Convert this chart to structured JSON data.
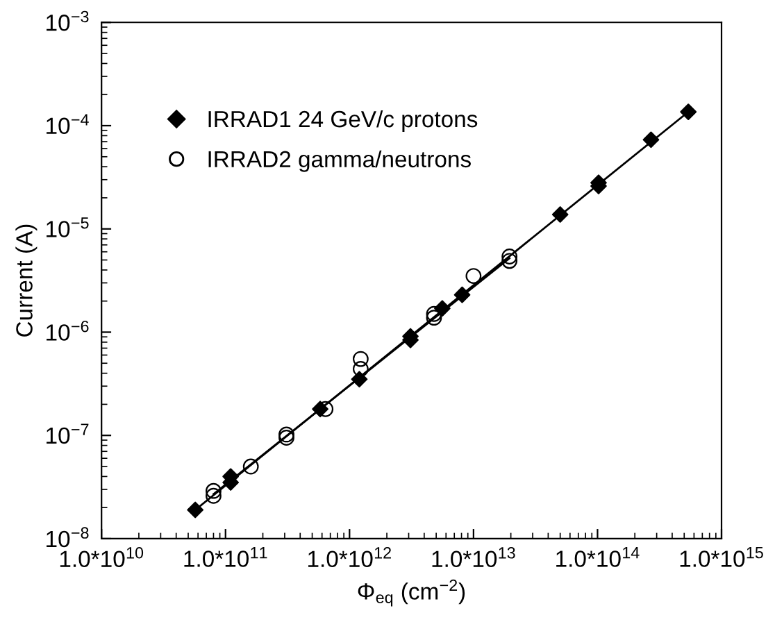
{
  "chart_data": {
    "type": "scatter",
    "xlabel": "Φ$_{eq}$ (cm$^{−2}$)",
    "ylabel": "Current (A)",
    "log": "xy",
    "grid": false,
    "legend": "top left",
    "xlim": [
      10000000000.0,
      1000000000000000.0
    ],
    "ylim": [
      1e-08,
      0.001
    ],
    "xticks": [
      {
        "value": 10000000000.0,
        "label": "1.0*10$^{10}$"
      },
      {
        "value": 100000000000.0,
        "label": "1.0*10$^{11}$"
      },
      {
        "value": 1000000000000.0,
        "label": "1.0*10$^{12}$"
      },
      {
        "value": 10000000000000.0,
        "label": "1.0*10$^{13}$"
      },
      {
        "value": 100000000000000.0,
        "label": "1.0*10$^{14}$"
      },
      {
        "value": 1000000000000000.0,
        "label": "1.0*10$^{15}$"
      }
    ],
    "yticks": [
      {
        "value": 1e-08,
        "label": "10$^{−8}$"
      },
      {
        "value": 1e-07,
        "label": "10$^{−7}$"
      },
      {
        "value": 1e-06,
        "label": "10$^{−6}$"
      },
      {
        "value": 1e-05,
        "label": "10$^{−5}$"
      },
      {
        "value": 0.0001,
        "label": "10$^{−4}$"
      },
      {
        "value": 0.001,
        "label": "10$^{−3}$"
      }
    ],
    "series": [
      {
        "type": "line",
        "color": "#000000",
        "line_style": "solid",
        "marker": "none",
        "x": [
          57000000000.0,
          540000000000000.0
        ],
        "values": [
          1.9e-08,
          0.000136
        ]
      },
      {
        "type": "line",
        "color": "#000000",
        "line_style": "solid",
        "marker": "none",
        "x": [
          80000000000.0,
          19500000000000.0
        ],
        "values": [
          2.7e-08,
          5.2e-06
        ]
      },
      {
        "name": "IRRAD1 24 GeV/c protons",
        "marker": "diamond",
        "color": "#000000",
        "x": [
          57000000000.0,
          110000000000.0,
          110000000000.0,
          580000000000.0,
          1200000000000.0,
          3100000000000.0,
          3100000000000.0,
          5600000000000.0,
          8100000000000.0,
          50000000000000.0,
          102000000000000.0,
          102000000000000.0,
          270000000000000.0,
          540000000000000.0
        ],
        "values": [
          1.9e-08,
          4e-08,
          3.5e-08,
          1.8e-07,
          3.5e-07,
          9.1e-07,
          8.4e-07,
          1.7e-06,
          2.3e-06,
          1.38e-05,
          2.8e-05,
          2.6e-05,
          7.3e-05,
          0.000136
        ]
      },
      {
        "name": "IRRAD2 gamma/neutrons",
        "marker": "circle",
        "color": "#000000",
        "x": [
          80000000000.0,
          80000000000.0,
          160000000000.0,
          310000000000.0,
          310000000000.0,
          640000000000.0,
          1230000000000.0,
          1230000000000.0,
          4800000000000.0,
          4800000000000.0,
          10000000000000.0,
          19500000000000.0,
          19500000000000.0
        ],
        "values": [
          2.9e-08,
          2.6e-08,
          5e-08,
          1.02e-07,
          9.5e-08,
          1.8e-07,
          5.5e-07,
          4.4e-07,
          1.5e-06,
          1.38e-06,
          3.5e-06,
          5.4e-06,
          4.9e-06
        ]
      }
    ]
  }
}
